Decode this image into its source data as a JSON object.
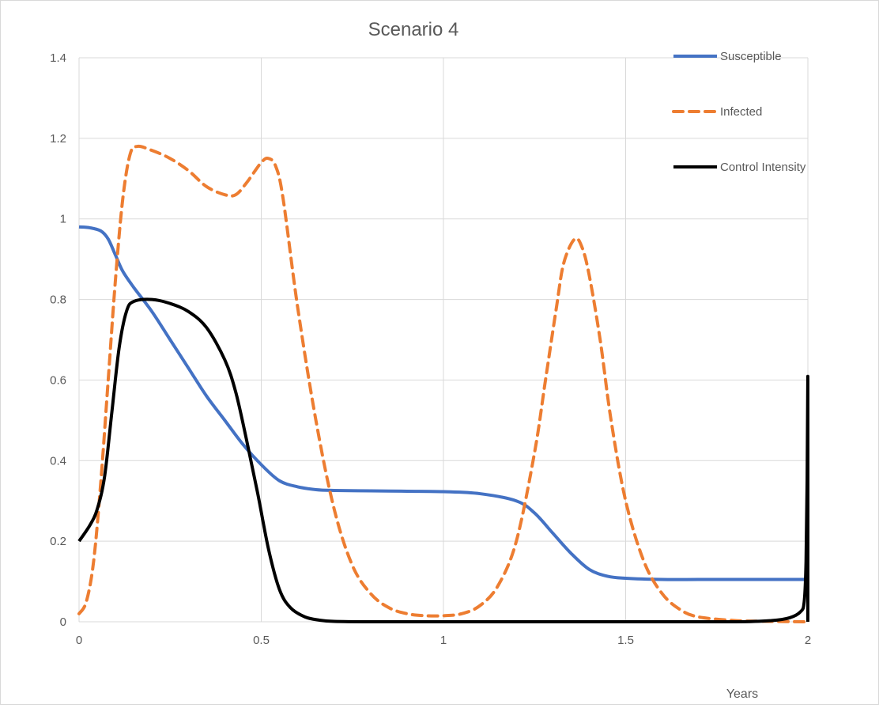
{
  "chart_data": {
    "type": "line",
    "title": "Scenario 4",
    "xlabel": "Years",
    "ylabel": "",
    "xlim": [
      0,
      2
    ],
    "ylim": [
      0,
      1.4
    ],
    "xticks": [
      0,
      0.5,
      1,
      1.5,
      2
    ],
    "xtick_labels": [
      "0",
      "0.5",
      "1",
      "1.5",
      "2"
    ],
    "yticks": [
      0,
      0.2,
      0.4,
      0.6,
      0.8,
      1,
      1.2,
      1.4
    ],
    "ytick_labels": [
      "0",
      "0.2",
      "0.4",
      "0.6",
      "0.8",
      "1",
      "1.2",
      "1.4"
    ],
    "grid": true,
    "legend_position": "top-right",
    "series": [
      {
        "name": "Susceptible",
        "color": "#4472c4",
        "dash": "solid",
        "points": [
          [
            0,
            0.98
          ],
          [
            0.03,
            0.978
          ],
          [
            0.06,
            0.97
          ],
          [
            0.08,
            0.95
          ],
          [
            0.1,
            0.91
          ],
          [
            0.12,
            0.87
          ],
          [
            0.15,
            0.83
          ],
          [
            0.2,
            0.77
          ],
          [
            0.25,
            0.7
          ],
          [
            0.3,
            0.63
          ],
          [
            0.35,
            0.56
          ],
          [
            0.4,
            0.5
          ],
          [
            0.45,
            0.44
          ],
          [
            0.5,
            0.39
          ],
          [
            0.55,
            0.35
          ],
          [
            0.6,
            0.335
          ],
          [
            0.65,
            0.328
          ],
          [
            0.7,
            0.326
          ],
          [
            0.8,
            0.325
          ],
          [
            0.9,
            0.324
          ],
          [
            1.0,
            0.323
          ],
          [
            1.1,
            0.318
          ],
          [
            1.2,
            0.3
          ],
          [
            1.25,
            0.27
          ],
          [
            1.3,
            0.22
          ],
          [
            1.35,
            0.17
          ],
          [
            1.4,
            0.13
          ],
          [
            1.45,
            0.113
          ],
          [
            1.5,
            0.108
          ],
          [
            1.6,
            0.105
          ],
          [
            1.7,
            0.105
          ],
          [
            1.8,
            0.105
          ],
          [
            1.9,
            0.105
          ],
          [
            2.0,
            0.105
          ]
        ]
      },
      {
        "name": "Infected",
        "color": "#ed7d31",
        "dash": "dashed",
        "points": [
          [
            0,
            0.02
          ],
          [
            0.02,
            0.05
          ],
          [
            0.04,
            0.15
          ],
          [
            0.06,
            0.35
          ],
          [
            0.08,
            0.6
          ],
          [
            0.1,
            0.85
          ],
          [
            0.12,
            1.05
          ],
          [
            0.14,
            1.16
          ],
          [
            0.16,
            1.18
          ],
          [
            0.2,
            1.17
          ],
          [
            0.25,
            1.15
          ],
          [
            0.3,
            1.12
          ],
          [
            0.35,
            1.08
          ],
          [
            0.4,
            1.06
          ],
          [
            0.43,
            1.06
          ],
          [
            0.46,
            1.09
          ],
          [
            0.5,
            1.14
          ],
          [
            0.52,
            1.15
          ],
          [
            0.54,
            1.13
          ],
          [
            0.56,
            1.05
          ],
          [
            0.6,
            0.78
          ],
          [
            0.65,
            0.5
          ],
          [
            0.7,
            0.28
          ],
          [
            0.75,
            0.14
          ],
          [
            0.8,
            0.07
          ],
          [
            0.85,
            0.035
          ],
          [
            0.9,
            0.02
          ],
          [
            0.95,
            0.015
          ],
          [
            1.0,
            0.015
          ],
          [
            1.05,
            0.02
          ],
          [
            1.1,
            0.04
          ],
          [
            1.15,
            0.09
          ],
          [
            1.2,
            0.2
          ],
          [
            1.25,
            0.42
          ],
          [
            1.28,
            0.6
          ],
          [
            1.31,
            0.78
          ],
          [
            1.33,
            0.89
          ],
          [
            1.36,
            0.95
          ],
          [
            1.38,
            0.93
          ],
          [
            1.4,
            0.86
          ],
          [
            1.43,
            0.7
          ],
          [
            1.46,
            0.5
          ],
          [
            1.5,
            0.3
          ],
          [
            1.55,
            0.15
          ],
          [
            1.6,
            0.07
          ],
          [
            1.65,
            0.03
          ],
          [
            1.7,
            0.012
          ],
          [
            1.8,
            0.003
          ],
          [
            1.9,
            0.001
          ],
          [
            2.0,
            0.0
          ]
        ]
      },
      {
        "name": "Control Intensity",
        "color": "#000000",
        "dash": "solid",
        "points": [
          [
            0,
            0.2
          ],
          [
            0.03,
            0.24
          ],
          [
            0.05,
            0.28
          ],
          [
            0.07,
            0.36
          ],
          [
            0.09,
            0.52
          ],
          [
            0.11,
            0.68
          ],
          [
            0.13,
            0.77
          ],
          [
            0.15,
            0.795
          ],
          [
            0.2,
            0.8
          ],
          [
            0.25,
            0.79
          ],
          [
            0.3,
            0.77
          ],
          [
            0.35,
            0.73
          ],
          [
            0.4,
            0.65
          ],
          [
            0.43,
            0.57
          ],
          [
            0.46,
            0.45
          ],
          [
            0.49,
            0.32
          ],
          [
            0.52,
            0.18
          ],
          [
            0.55,
            0.08
          ],
          [
            0.58,
            0.035
          ],
          [
            0.62,
            0.012
          ],
          [
            0.66,
            0.004
          ],
          [
            0.7,
            0.001
          ],
          [
            0.8,
            0.0
          ],
          [
            1.0,
            0.0
          ],
          [
            1.5,
            0.0
          ],
          [
            1.8,
            0.0
          ],
          [
            1.9,
            0.003
          ],
          [
            1.95,
            0.01
          ],
          [
            1.98,
            0.025
          ],
          [
            1.99,
            0.05
          ],
          [
            1.995,
            0.15
          ],
          [
            1.998,
            0.35
          ],
          [
            2.0,
            0.6
          ],
          [
            2.0,
            0.0
          ]
        ]
      }
    ]
  }
}
